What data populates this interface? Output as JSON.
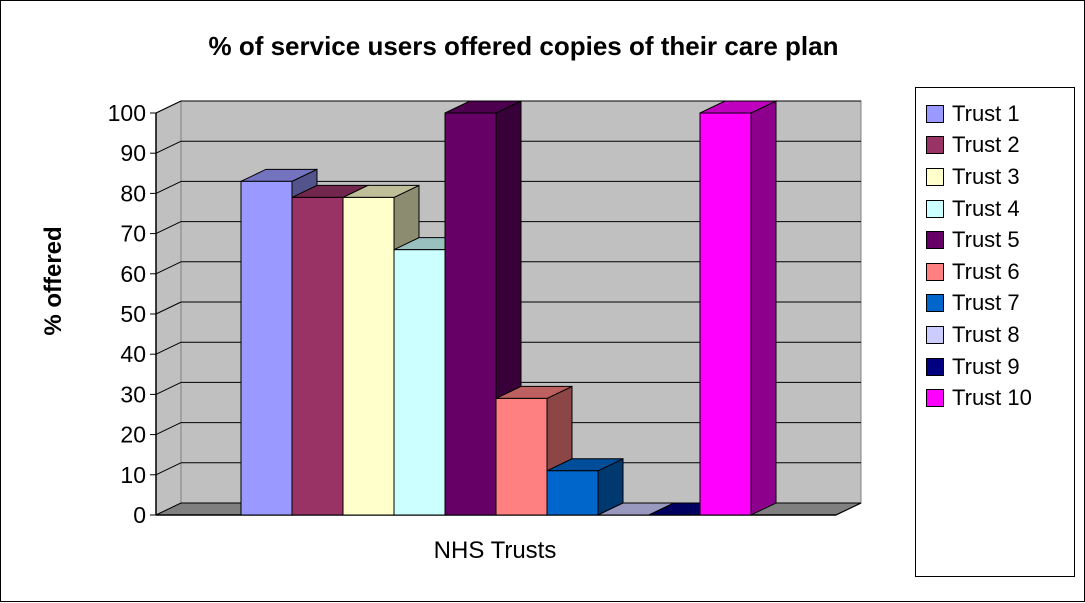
{
  "chart_data": {
    "type": "bar",
    "title": "% of service users offered copies of their care plan",
    "xlabel": "NHS Trusts",
    "ylabel": "% offered",
    "categories": [
      "NHS Trusts"
    ],
    "ylim": [
      0,
      100
    ],
    "yticks": [
      "0",
      "10",
      "20",
      "30",
      "40",
      "50",
      "60",
      "70",
      "80",
      "90",
      "100"
    ],
    "grid": true,
    "legend_position": "right",
    "series": [
      {
        "name": "Trust 1",
        "value": 83,
        "color": "#9999ff"
      },
      {
        "name": "Trust 2",
        "value": 79,
        "color": "#993366"
      },
      {
        "name": "Trust 3",
        "value": 79,
        "color": "#ffffcc"
      },
      {
        "name": "Trust 4",
        "value": 66,
        "color": "#ccffff"
      },
      {
        "name": "Trust 5",
        "value": 100,
        "color": "#660066"
      },
      {
        "name": "Trust 6",
        "value": 29,
        "color": "#ff8080"
      },
      {
        "name": "Trust 7",
        "value": 11,
        "color": "#0066cc"
      },
      {
        "name": "Trust 8",
        "value": 0,
        "color": "#ccccff"
      },
      {
        "name": "Trust 9",
        "value": 0,
        "color": "#000080"
      },
      {
        "name": "Trust 10",
        "value": 100,
        "color": "#ff00ff"
      }
    ]
  }
}
